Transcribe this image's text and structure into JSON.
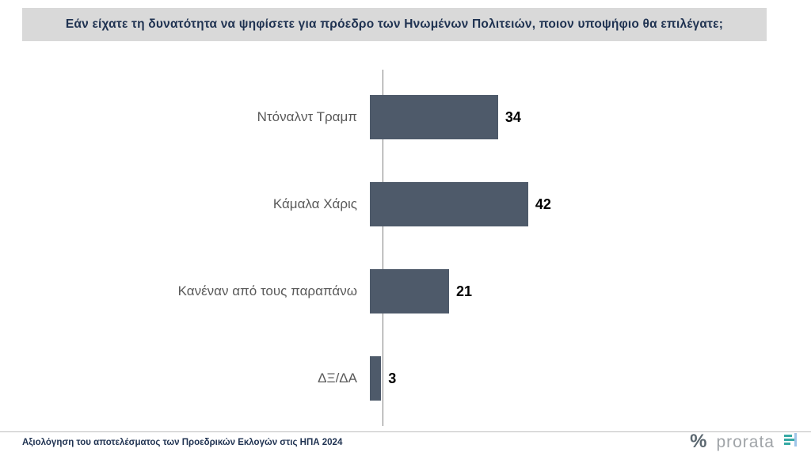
{
  "header": {
    "title": "Εάν είχατε τη δυνατότητα να ψηφίσετε για πρόεδρο των Ηνωμένων Πολιτειών, ποιον υποψήφιο θα επιλέγατε;"
  },
  "chart_data": {
    "type": "bar",
    "orientation": "horizontal",
    "title": "Εάν είχατε τη δυνατότητα να ψηφίσετε για πρόεδρο των Ηνωμένων Πολιτειών, ποιον υποψήφιο θα επιλέγατε;",
    "categories": [
      "Ντόναλντ Τραμπ",
      "Κάμαλα Χάρις",
      "Κανέναν από τους παραπάνω",
      "ΔΞ/ΔΑ"
    ],
    "values": [
      34,
      42,
      21,
      3
    ],
    "xlabel": "",
    "ylabel": "",
    "xlim": [
      0,
      45
    ],
    "grid": false,
    "legend": false,
    "data_labels": true,
    "bar_color": "#4e5a6a"
  },
  "footer": {
    "caption": "Αξιολόγηση του αποτελέσματος των Προεδρικών Εκλογών στις ΗΠΑ 2024",
    "percent_symbol": "%",
    "brand": "prorata"
  }
}
